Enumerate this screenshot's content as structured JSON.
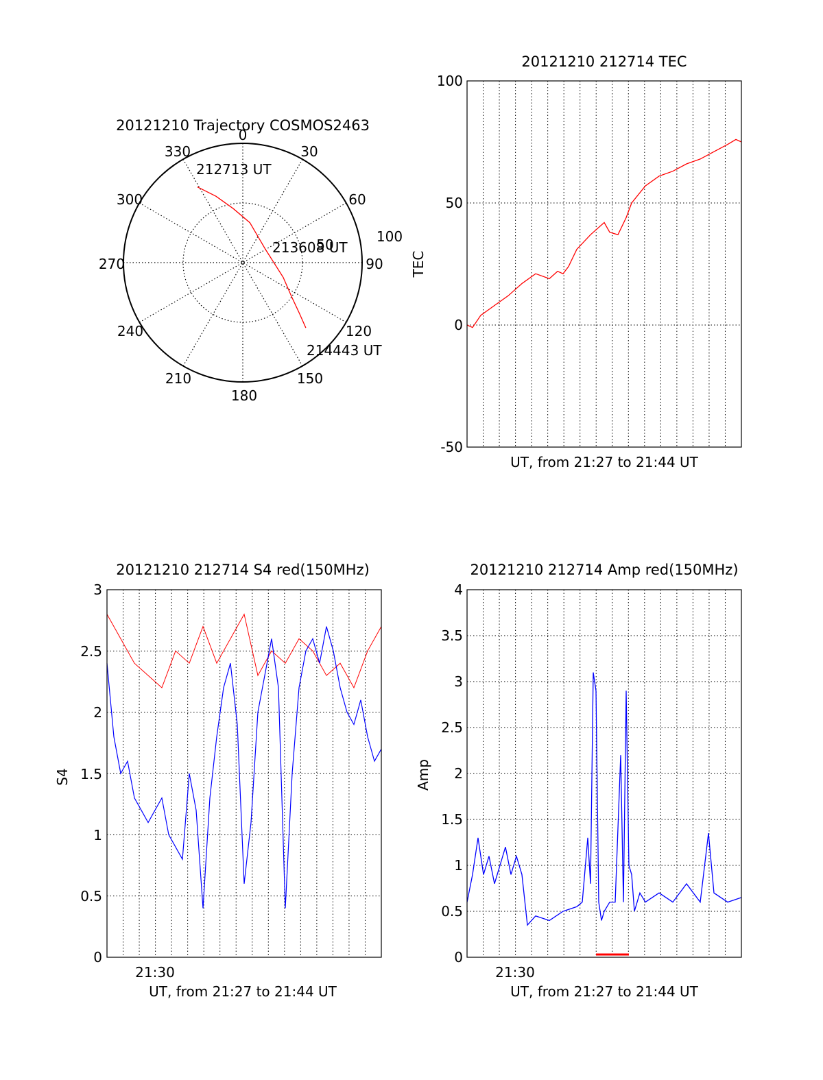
{
  "colors": {
    "red": "#ff0000",
    "blue": "#0000ff",
    "axis": "#000000",
    "grid": "#000000"
  },
  "chart_data": [
    {
      "type": "polar",
      "title": "20121210 Trajectory COSMOS2463",
      "azimuth_labels": [
        "0",
        "30",
        "60",
        "90",
        "120",
        "150",
        "180",
        "210",
        "240",
        "270",
        "300",
        "330"
      ],
      "radial_labels": [
        "50",
        "100"
      ],
      "rlim": [
        0,
        100
      ],
      "grid": true,
      "series": [
        {
          "color": "#ff0000",
          "points": [
            [
              329,
              74
            ],
            [
              338,
              60
            ],
            [
              350,
              46
            ],
            [
              10,
              34
            ],
            [
              60,
              22
            ],
            [
              110,
              36
            ],
            [
              125,
              50
            ],
            [
              132,
              64
            ],
            [
              136,
              76
            ]
          ]
        }
      ],
      "annotations": [
        "212713 UT",
        "213608 UT",
        "214443 UT"
      ]
    },
    {
      "type": "line",
      "title": "20121210 212714 TEC",
      "xlabel": "UT, from 21:27 to 21:44 UT",
      "ylabel": "TEC",
      "xlim": [
        0,
        1
      ],
      "ylim": [
        -50,
        100
      ],
      "yticks": [
        "-50",
        "0",
        "50",
        "100"
      ],
      "grid": true,
      "series": [
        {
          "color": "#ff0000",
          "x": [
            0,
            0.02,
            0.05,
            0.1,
            0.15,
            0.2,
            0.25,
            0.3,
            0.33,
            0.35,
            0.37,
            0.4,
            0.45,
            0.5,
            0.52,
            0.55,
            0.58,
            0.6,
            0.65,
            0.7,
            0.75,
            0.8,
            0.85,
            0.9,
            0.95,
            0.98,
            1.0
          ],
          "y": [
            0,
            -1,
            4,
            8,
            12,
            17,
            21,
            19,
            22,
            21,
            24,
            31,
            37,
            42,
            38,
            37,
            44,
            50,
            57,
            61,
            63,
            66,
            68,
            71,
            74,
            76,
            75
          ]
        }
      ]
    },
    {
      "type": "line",
      "title": "20121210 212714 S4 red(150MHz)",
      "xlabel": "UT, from 21:27 to 21:44 UT",
      "ylabel": "S4",
      "xlim": [
        0,
        1
      ],
      "ylim": [
        0,
        3
      ],
      "yticks": [
        "0",
        "0.5",
        "1",
        "1.5",
        "2",
        "2.5",
        "3"
      ],
      "xtick_labels": [
        {
          "x": 0.176,
          "label": "21:30"
        }
      ],
      "grid": true,
      "series": [
        {
          "color": "#ff0000",
          "x": [
            0,
            0.05,
            0.1,
            0.15,
            0.2,
            0.25,
            0.3,
            0.35,
            0.4,
            0.45,
            0.5,
            0.55,
            0.6,
            0.65,
            0.7,
            0.75,
            0.8,
            0.85,
            0.9,
            0.95,
            1.0
          ],
          "y": [
            2.8,
            2.6,
            2.4,
            2.3,
            2.2,
            2.5,
            2.4,
            2.7,
            2.4,
            2.6,
            2.8,
            2.3,
            2.5,
            2.4,
            2.6,
            2.5,
            2.3,
            2.4,
            2.2,
            2.5,
            2.7
          ]
        },
        {
          "color": "#0000ff",
          "x": [
            0,
            0.025,
            0.05,
            0.075,
            0.1,
            0.125,
            0.15,
            0.175,
            0.2,
            0.225,
            0.25,
            0.275,
            0.3,
            0.325,
            0.35,
            0.375,
            0.4,
            0.425,
            0.45,
            0.475,
            0.5,
            0.525,
            0.55,
            0.575,
            0.6,
            0.625,
            0.65,
            0.675,
            0.7,
            0.725,
            0.75,
            0.775,
            0.8,
            0.825,
            0.85,
            0.875,
            0.9,
            0.925,
            0.95,
            0.975,
            1.0
          ],
          "y": [
            2.4,
            1.8,
            1.5,
            1.6,
            1.3,
            1.2,
            1.1,
            1.2,
            1.3,
            1.0,
            0.9,
            0.8,
            1.5,
            1.2,
            0.4,
            1.3,
            1.8,
            2.2,
            2.4,
            1.9,
            0.6,
            1.1,
            2.0,
            2.3,
            2.6,
            2.2,
            0.4,
            1.5,
            2.2,
            2.5,
            2.6,
            2.4,
            2.7,
            2.5,
            2.2,
            2.0,
            1.9,
            2.1,
            1.8,
            1.6,
            1.7
          ]
        }
      ]
    },
    {
      "type": "line",
      "title": "20121210 212714 Amp red(150MHz)",
      "xlabel": "UT, from 21:27 to 21:44 UT",
      "ylabel": "Amp",
      "xlim": [
        0,
        1
      ],
      "ylim": [
        0,
        4
      ],
      "yticks": [
        "0",
        "0.5",
        "1",
        "1.5",
        "2",
        "2.5",
        "3",
        "3.5",
        "4"
      ],
      "xtick_labels": [
        {
          "x": 0.176,
          "label": "21:30"
        }
      ],
      "grid": true,
      "series": [
        {
          "color": "#0000ff",
          "x": [
            0,
            0.02,
            0.04,
            0.06,
            0.08,
            0.1,
            0.12,
            0.14,
            0.16,
            0.18,
            0.2,
            0.22,
            0.25,
            0.3,
            0.35,
            0.4,
            0.42,
            0.44,
            0.45,
            0.46,
            0.47,
            0.48,
            0.49,
            0.5,
            0.52,
            0.54,
            0.56,
            0.57,
            0.58,
            0.59,
            0.6,
            0.61,
            0.62,
            0.63,
            0.65,
            0.7,
            0.75,
            0.8,
            0.85,
            0.88,
            0.9,
            0.95,
            1.0
          ],
          "y": [
            0.6,
            0.9,
            1.3,
            0.9,
            1.1,
            0.8,
            1.0,
            1.2,
            0.9,
            1.1,
            0.9,
            0.35,
            0.45,
            0.4,
            0.5,
            0.55,
            0.6,
            1.3,
            0.8,
            3.1,
            2.9,
            0.6,
            0.4,
            0.5,
            0.6,
            0.6,
            2.2,
            0.6,
            2.9,
            1.0,
            0.9,
            0.5,
            0.6,
            0.7,
            0.6,
            0.7,
            0.6,
            0.8,
            0.6,
            1.35,
            0.7,
            0.6,
            0.65
          ]
        },
        {
          "color": "#ff0000",
          "x": [
            0.47,
            0.59
          ],
          "y": [
            0.03,
            0.03
          ]
        }
      ]
    }
  ]
}
